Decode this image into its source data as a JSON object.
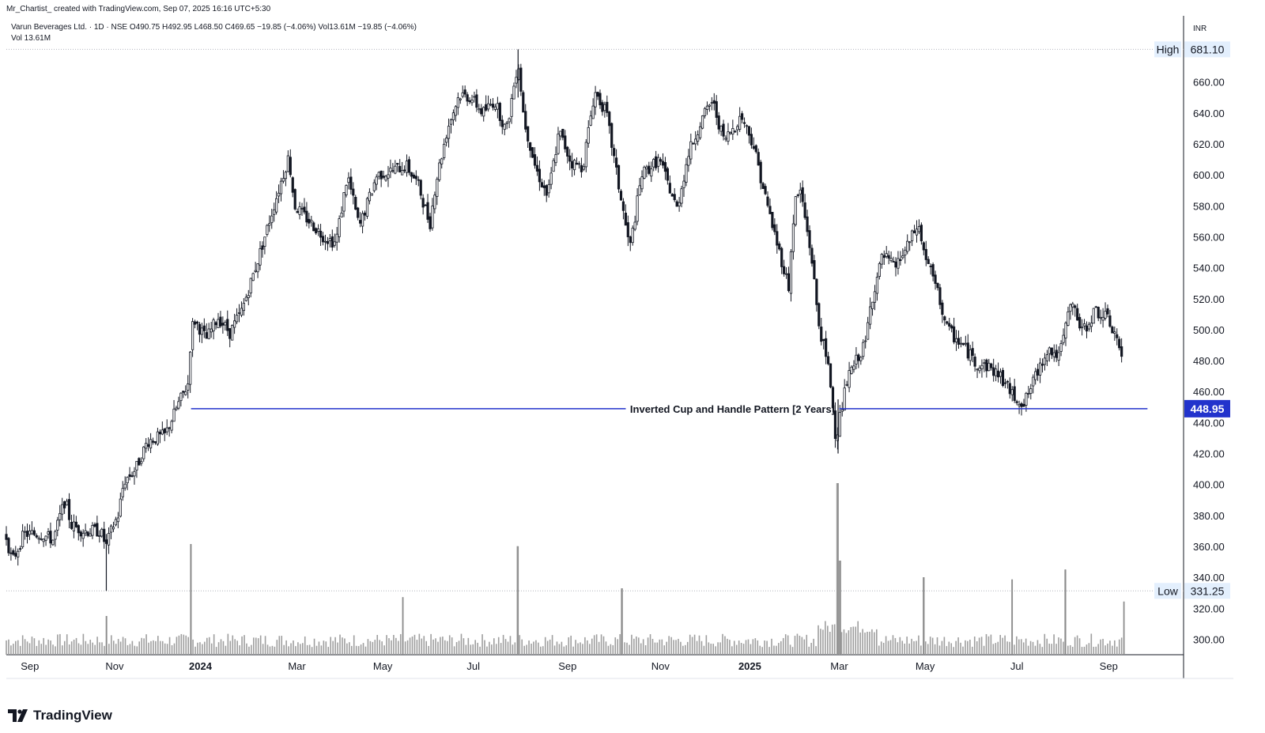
{
  "header": {
    "attribution": "Mr_Chartist_ created with TradingView.com, Sep 07, 2025 16:16 UTC+5:30",
    "legend_line1": "Varun Beverages Ltd. · 1D · NSE  O490.75  H492.95  L468.50  C469.65  −19.85 (−4.06%)  Vol13.61M  −19.85 (−4.06%)",
    "legend_line2": "Vol  13.61M"
  },
  "brand": {
    "label": "TradingView",
    "icon": "tradingview-logo-icon"
  },
  "colors": {
    "candle": "#131722",
    "volume": "#9e9e9e",
    "pattern_line": "#2233cc",
    "price_label_bg": "#2233cc",
    "marker_bg": "#e3effd",
    "grid_dots": "#b2b5be"
  },
  "chart_data": {
    "type": "candlestick",
    "symbol": "Varun Beverages Ltd.",
    "interval": "1D",
    "exchange": "NSE",
    "currency": "INR",
    "ylim": [
      290,
      690
    ],
    "y_ticks": [
      300,
      320,
      340,
      360,
      380,
      400,
      420,
      440,
      460,
      480,
      500,
      520,
      540,
      560,
      580,
      600,
      620,
      640,
      660
    ],
    "y_tick_labels": [
      "300.00",
      "320.00",
      "340.00",
      "360.00",
      "380.00",
      "400.00",
      "420.00",
      "440.00",
      "460.00",
      "480.00",
      "500.00",
      "520.00",
      "540.00",
      "560.00",
      "580.00",
      "600.00",
      "620.00",
      "640.00",
      "660.00"
    ],
    "x_ticks": [
      {
        "label": "Sep",
        "t": 0.02,
        "bold": false
      },
      {
        "label": "Nov",
        "t": 0.092,
        "bold": false
      },
      {
        "label": "2024",
        "t": 0.165,
        "bold": true
      },
      {
        "label": "Mar",
        "t": 0.247,
        "bold": false
      },
      {
        "label": "May",
        "t": 0.32,
        "bold": false
      },
      {
        "label": "Jul",
        "t": 0.397,
        "bold": false
      },
      {
        "label": "Sep",
        "t": 0.477,
        "bold": false
      },
      {
        "label": "Nov",
        "t": 0.556,
        "bold": false
      },
      {
        "label": "2025",
        "t": 0.632,
        "bold": true
      },
      {
        "label": "Mar",
        "t": 0.708,
        "bold": false
      },
      {
        "label": "May",
        "t": 0.781,
        "bold": false
      },
      {
        "label": "Jul",
        "t": 0.859,
        "bold": false
      },
      {
        "label": "Sep",
        "t": 0.937,
        "bold": false
      }
    ],
    "price_path": [
      [
        0.0,
        366
      ],
      [
        0.005,
        350
      ],
      [
        0.015,
        368
      ],
      [
        0.03,
        368
      ],
      [
        0.04,
        364
      ],
      [
        0.045,
        378
      ],
      [
        0.05,
        390
      ],
      [
        0.055,
        374
      ],
      [
        0.065,
        370
      ],
      [
        0.08,
        370
      ],
      [
        0.085,
        360
      ],
      [
        0.09,
        372
      ],
      [
        0.095,
        380
      ],
      [
        0.1,
        402
      ],
      [
        0.11,
        410
      ],
      [
        0.12,
        428
      ],
      [
        0.135,
        432
      ],
      [
        0.145,
        450
      ],
      [
        0.155,
        466
      ],
      [
        0.157,
        500
      ],
      [
        0.16,
        506
      ],
      [
        0.165,
        500
      ],
      [
        0.17,
        494
      ],
      [
        0.18,
        508
      ],
      [
        0.19,
        498
      ],
      [
        0.2,
        512
      ],
      [
        0.215,
        548
      ],
      [
        0.225,
        574
      ],
      [
        0.24,
        612
      ],
      [
        0.245,
        580
      ],
      [
        0.26,
        568
      ],
      [
        0.27,
        560
      ],
      [
        0.28,
        556
      ],
      [
        0.29,
        600
      ],
      [
        0.3,
        566
      ],
      [
        0.315,
        600
      ],
      [
        0.325,
        602
      ],
      [
        0.34,
        606
      ],
      [
        0.35,
        594
      ],
      [
        0.36,
        568
      ],
      [
        0.365,
        595
      ],
      [
        0.375,
        630
      ],
      [
        0.385,
        652
      ],
      [
        0.395,
        650
      ],
      [
        0.405,
        640
      ],
      [
        0.415,
        648
      ],
      [
        0.425,
        628
      ],
      [
        0.435,
        674
      ],
      [
        0.44,
        636
      ],
      [
        0.45,
        604
      ],
      [
        0.46,
        586
      ],
      [
        0.47,
        628
      ],
      [
        0.48,
        608
      ],
      [
        0.49,
        605
      ],
      [
        0.5,
        654
      ],
      [
        0.51,
        640
      ],
      [
        0.52,
        595
      ],
      [
        0.53,
        552
      ],
      [
        0.54,
        600
      ],
      [
        0.555,
        610
      ],
      [
        0.57,
        578
      ],
      [
        0.58,
        614
      ],
      [
        0.59,
        634
      ],
      [
        0.6,
        648
      ],
      [
        0.61,
        622
      ],
      [
        0.625,
        638
      ],
      [
        0.635,
        620
      ],
      [
        0.645,
        586
      ],
      [
        0.655,
        556
      ],
      [
        0.665,
        528
      ],
      [
        0.67,
        582
      ],
      [
        0.675,
        590
      ],
      [
        0.685,
        544
      ],
      [
        0.69,
        506
      ],
      [
        0.7,
        470
      ],
      [
        0.705,
        430
      ],
      [
        0.715,
        468
      ],
      [
        0.725,
        484
      ],
      [
        0.73,
        490
      ],
      [
        0.735,
        518
      ],
      [
        0.745,
        548
      ],
      [
        0.755,
        540
      ],
      [
        0.765,
        552
      ],
      [
        0.775,
        568
      ],
      [
        0.78,
        550
      ],
      [
        0.79,
        528
      ],
      [
        0.8,
        500
      ],
      [
        0.815,
        488
      ],
      [
        0.825,
        478
      ],
      [
        0.835,
        476
      ],
      [
        0.845,
        470
      ],
      [
        0.855,
        458
      ],
      [
        0.865,
        452
      ],
      [
        0.875,
        470
      ],
      [
        0.885,
        488
      ],
      [
        0.895,
        482
      ],
      [
        0.905,
        518
      ],
      [
        0.915,
        498
      ],
      [
        0.925,
        512
      ],
      [
        0.935,
        508
      ],
      [
        0.945,
        493
      ],
      [
        0.95,
        470
      ]
    ],
    "all_time_high": 681.1,
    "all_time_low": 331.25,
    "high_label": "High",
    "high_value": "681.10",
    "low_label": "Low",
    "low_value": "331.25",
    "support_level": 448.95,
    "support_value_label": "448.95",
    "annotation": "Inverted Cup and Handle Pattern [2 Years]",
    "support_line_range": [
      0.157,
      0.97
    ],
    "volume_spikes": [
      {
        "t": 0.157,
        "v": 1.0
      },
      {
        "t": 0.085,
        "v": 0.35
      },
      {
        "t": 0.435,
        "v": 0.98
      },
      {
        "t": 0.523,
        "v": 0.6
      },
      {
        "t": 0.707,
        "v": 1.55
      },
      {
        "t": 0.709,
        "v": 0.85
      },
      {
        "t": 0.337,
        "v": 0.52
      },
      {
        "t": 0.78,
        "v": 0.7
      },
      {
        "t": 0.855,
        "v": 0.68
      },
      {
        "t": 0.9,
        "v": 0.77
      },
      {
        "t": 0.95,
        "v": 0.48
      }
    ]
  }
}
